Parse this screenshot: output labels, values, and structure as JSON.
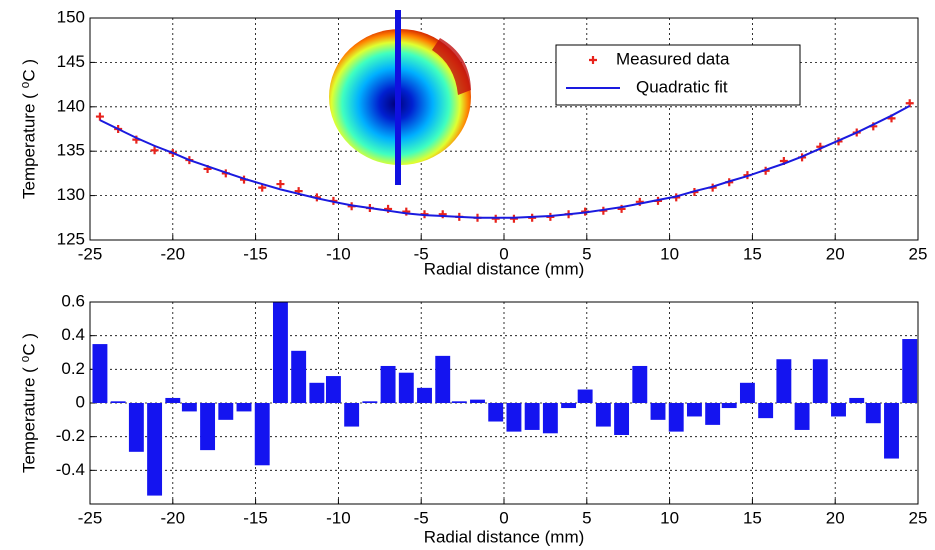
{
  "chart_data": [
    {
      "type": "scatter",
      "xlabel": "Radial distance (mm)",
      "ylabel": "Temperature ( ⁰C )",
      "xlim": [
        -25,
        25
      ],
      "xticks": [
        -25,
        -20,
        -15,
        -10,
        -5,
        0,
        5,
        10,
        15,
        20,
        25
      ],
      "ylim": [
        125,
        150
      ],
      "yticks": [
        125,
        130,
        135,
        140,
        145,
        150
      ],
      "grid": true,
      "x": [
        -24.4,
        -23.3,
        -22.2,
        -21.1,
        -20.0,
        -19.0,
        -17.9,
        -16.8,
        -15.7,
        -14.6,
        -13.5,
        -12.4,
        -11.3,
        -10.3,
        -9.2,
        -8.1,
        -7.0,
        -5.9,
        -4.8,
        -3.7,
        -2.7,
        -1.6,
        -0.5,
        0.6,
        1.7,
        2.8,
        3.9,
        4.9,
        6.0,
        7.1,
        8.2,
        9.3,
        10.4,
        11.5,
        12.6,
        13.6,
        14.7,
        15.8,
        16.9,
        18.0,
        19.1,
        20.2,
        21.3,
        22.3,
        23.4,
        24.5
      ],
      "series": [
        {
          "name": "Measured data",
          "type": "scatter",
          "color": "#e8231c",
          "values": [
            138.9,
            137.5,
            136.3,
            135.1,
            134.8,
            134.0,
            133.0,
            132.5,
            131.8,
            130.9,
            131.3,
            130.5,
            129.8,
            129.4,
            128.8,
            128.6,
            128.5,
            128.2,
            127.9,
            127.9,
            127.6,
            127.5,
            127.4,
            127.4,
            127.5,
            127.6,
            127.9,
            128.2,
            128.3,
            128.5,
            129.3,
            129.4,
            129.8,
            130.4,
            130.9,
            131.5,
            132.3,
            132.8,
            133.9,
            134.3,
            135.5,
            136.1,
            137.1,
            137.8,
            138.7,
            140.4
          ]
        },
        {
          "name": "Quadratic fit",
          "type": "line",
          "color": "#1a1adf",
          "values": [
            138.5,
            137.5,
            136.5,
            135.6,
            134.8,
            134.0,
            133.3,
            132.6,
            131.9,
            131.3,
            130.7,
            130.2,
            129.7,
            129.3,
            128.9,
            128.6,
            128.3,
            128.0,
            127.8,
            127.7,
            127.6,
            127.5,
            127.5,
            127.5,
            127.6,
            127.7,
            127.9,
            128.1,
            128.4,
            128.7,
            129.1,
            129.5,
            129.9,
            130.5,
            131.0,
            131.6,
            132.2,
            132.9,
            133.6,
            134.4,
            135.3,
            136.2,
            137.1,
            138.0,
            139.0,
            140.1
          ]
        }
      ]
    },
    {
      "type": "bar",
      "xlabel": "Radial distance (mm)",
      "ylabel": "Temperature ( ⁰C )",
      "xlim": [
        -25,
        25
      ],
      "xticks": [
        -25,
        -20,
        -15,
        -10,
        -5,
        0,
        5,
        10,
        15,
        20,
        25
      ],
      "ylim": [
        -0.6,
        0.6
      ],
      "yticks": [
        -0.4,
        -0.2,
        0,
        0.2,
        0.4,
        0.6
      ],
      "grid": true,
      "color": "#1414f0",
      "bar_width": 0.9,
      "x": [
        -24.4,
        -23.3,
        -22.2,
        -21.1,
        -20.0,
        -19.0,
        -17.9,
        -16.8,
        -15.7,
        -14.6,
        -13.5,
        -12.4,
        -11.3,
        -10.3,
        -9.2,
        -8.1,
        -7.0,
        -5.9,
        -4.8,
        -3.7,
        -2.7,
        -1.6,
        -0.5,
        0.6,
        1.7,
        2.8,
        3.9,
        4.9,
        6.0,
        7.1,
        8.2,
        9.3,
        10.4,
        11.5,
        12.6,
        13.6,
        14.7,
        15.8,
        16.9,
        18.0,
        19.1,
        20.2,
        21.3,
        22.3,
        23.4,
        24.5
      ],
      "values": [
        0.35,
        0.01,
        -0.29,
        -0.55,
        0.03,
        -0.05,
        -0.28,
        -0.1,
        -0.05,
        -0.37,
        0.6,
        0.31,
        0.12,
        0.16,
        -0.14,
        0.01,
        0.22,
        0.18,
        0.09,
        0.28,
        0.01,
        0.02,
        -0.11,
        -0.17,
        -0.16,
        -0.18,
        -0.03,
        0.08,
        -0.14,
        -0.19,
        0.22,
        -0.1,
        -0.17,
        -0.08,
        -0.13,
        -0.03,
        0.12,
        -0.09,
        0.26,
        -0.16,
        0.26,
        -0.08,
        0.03,
        -0.12,
        -0.33,
        0.38
      ]
    }
  ]
}
